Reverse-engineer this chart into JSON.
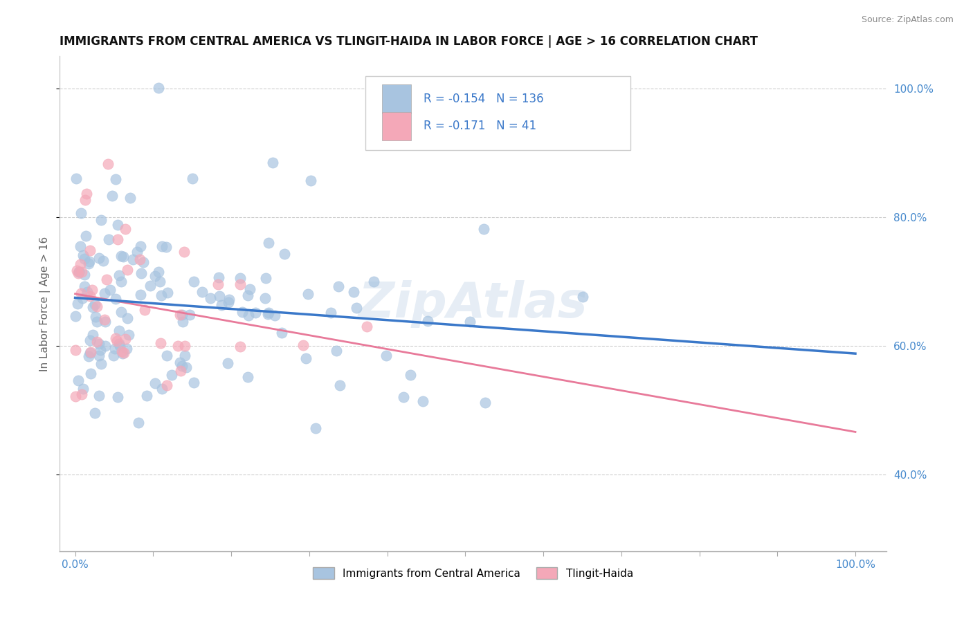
{
  "title": "IMMIGRANTS FROM CENTRAL AMERICA VS TLINGIT-HAIDA IN LABOR FORCE | AGE > 16 CORRELATION CHART",
  "source": "Source: ZipAtlas.com",
  "ylabel": "In Labor Force | Age > 16",
  "blue_R": -0.154,
  "blue_N": 136,
  "pink_R": -0.171,
  "pink_N": 41,
  "blue_color": "#a8c4e0",
  "pink_color": "#f4a8b8",
  "blue_line_color": "#3a78c9",
  "pink_line_color": "#e87a9a",
  "legend_labels": [
    "Immigrants from Central America",
    "Tlingit-Haida"
  ],
  "xlim": [
    -0.02,
    1.04
  ],
  "ylim": [
    0.28,
    1.05
  ],
  "watermark": "ZipAtlas",
  "background_color": "#ffffff",
  "grid_color": "#cccccc",
  "blue_seed": 42,
  "pink_seed": 99
}
